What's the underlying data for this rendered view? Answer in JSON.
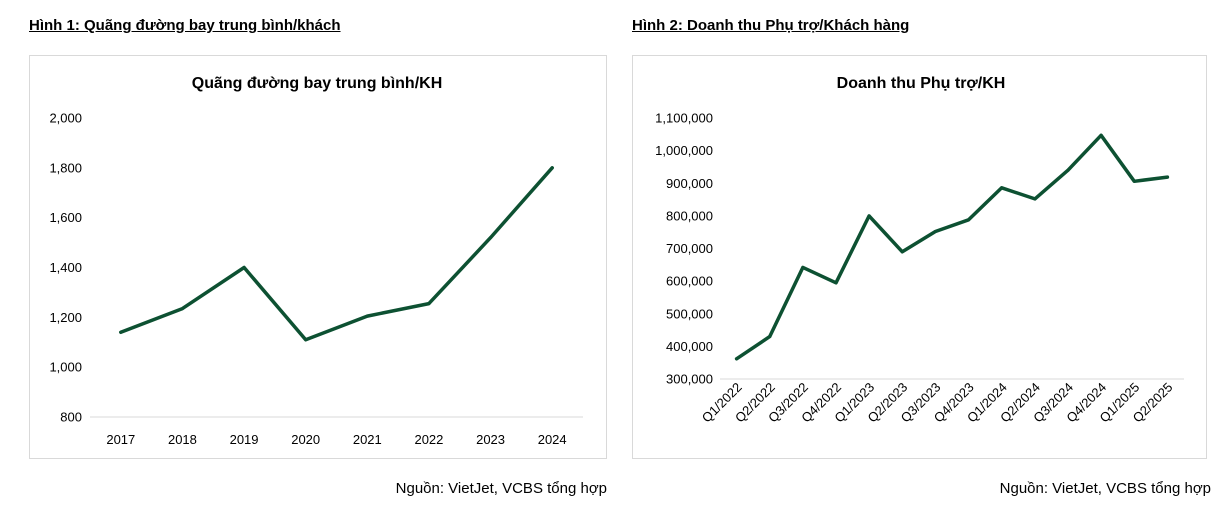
{
  "figures": [
    {
      "caption": "Hình 1: Quãng đường bay trung bình/khách",
      "source": "Nguồn: VietJet, VCBS tổng hợp"
    },
    {
      "caption": "Hình 2: Doanh thu Phụ trợ/Khách hàng",
      "source": "Nguồn: VietJet, VCBS tổng hợp"
    }
  ],
  "colors": {
    "line": "#0d5132",
    "axis": "#d9d9d9"
  },
  "chart_data": [
    {
      "type": "line",
      "title": "Quãng đường bay trung bình/KH",
      "xlabel": "",
      "ylabel": "",
      "categories": [
        "2017",
        "2018",
        "2019",
        "2020",
        "2021",
        "2022",
        "2023",
        "2024"
      ],
      "values": [
        1140,
        1235,
        1400,
        1110,
        1205,
        1255,
        1520,
        1800
      ],
      "ylim": [
        800,
        2000
      ],
      "yticks": [
        "800",
        "1,000",
        "1,200",
        "1,400",
        "1,600",
        "1,800",
        "2,000"
      ],
      "grid": false,
      "legend": "none"
    },
    {
      "type": "line",
      "title": "Doanh thu Phụ trợ/KH",
      "xlabel": "",
      "ylabel": "",
      "categories": [
        "Q1/2022",
        "Q2/2022",
        "Q3/2022",
        "Q4/2022",
        "Q1/2023",
        "Q2/2023",
        "Q3/2023",
        "Q4/2023",
        "Q1/2024",
        "Q2/2024",
        "Q3/2024",
        "Q4/2024",
        "Q1/2025",
        "Q2/2025"
      ],
      "values": [
        362000,
        430000,
        642000,
        595000,
        800000,
        690000,
        752000,
        788000,
        886000,
        852000,
        940000,
        1047000,
        906000,
        919000
      ],
      "ylim": [
        300000,
        1100000
      ],
      "yticks": [
        "300,000",
        "400,000",
        "500,000",
        "600,000",
        "700,000",
        "800,000",
        "900,000",
        "1,000,000",
        "1,100,000"
      ],
      "grid": false,
      "legend": "none"
    }
  ]
}
